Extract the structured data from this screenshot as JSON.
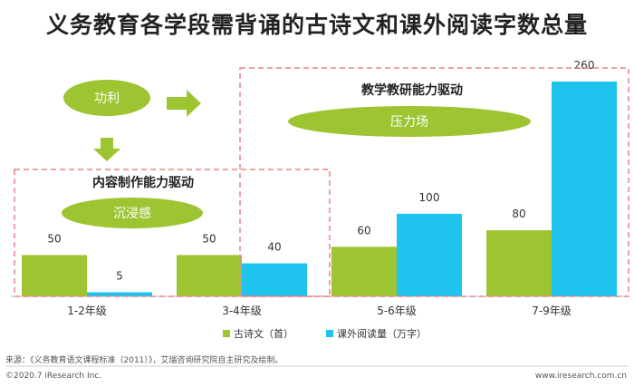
{
  "page": {
    "title": "义务教育各学段需背诵的古诗文和课外阅读字数总量",
    "source": "来源：《义务教育语文课程标准（2011）》，艾瑞咨询研究院自主研究及绘制。",
    "copyright": "©2020.7 iResearch Inc.",
    "website": "www.iresearch.com.cn"
  },
  "annotations": {
    "gongli": "功利",
    "neirong": "内容制作能力驱动",
    "chenjin": "沉浸感",
    "jiaoxue": "教学教研能力驱动",
    "yali": "压力场"
  },
  "colors": {
    "green": "#9dc431",
    "blue": "#1ec3ee",
    "green_dark": "#93b92c",
    "dashed": "#e8828c"
  },
  "chart_data": {
    "type": "bar",
    "categories": [
      "1-2年级",
      "3-4年级",
      "5-6年级",
      "7-9年级"
    ],
    "series": [
      {
        "name": "古诗文（首）",
        "values": [
          50,
          50,
          60,
          80
        ]
      },
      {
        "name": "课外阅读量（万字）",
        "values": [
          5,
          40,
          100,
          260
        ]
      }
    ],
    "legend": "bottom-center",
    "grid": false
  }
}
